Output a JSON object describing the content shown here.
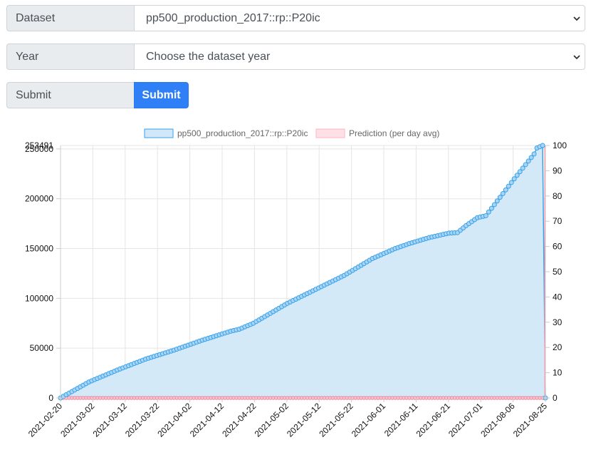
{
  "form": {
    "dataset_label": "Dataset",
    "dataset_value": "pp500_production_2017::rp::P20ic",
    "year_label": "Year",
    "year_value": "Choose the dataset year",
    "submit_label": "Submit",
    "submit_button": "Submit"
  },
  "chart_data": {
    "type": "line",
    "legend_placement": "top",
    "grid": true,
    "x_tick_labels": [
      "2021-02-20",
      "2021-03-02",
      "2021-03-12",
      "2021-03-22",
      "2021-04-02",
      "2021-04-12",
      "2021-04-22",
      "2021-05-02",
      "2021-05-12",
      "2021-05-22",
      "2021-06-01",
      "2021-06-11",
      "2021-06-21",
      "2021-07-01",
      "2021-08-06",
      "2021-08-25"
    ],
    "y_left": {
      "ticks": [
        0,
        50000,
        100000,
        150000,
        200000,
        250000
      ],
      "max_label": "253491",
      "ylim": [
        0,
        253491
      ]
    },
    "y_right": {
      "ticks": [
        0,
        10,
        20,
        30,
        40,
        50,
        60,
        70,
        80,
        90,
        100
      ],
      "ylim": [
        0,
        100
      ]
    },
    "series": [
      {
        "name": "pp500_production_2017::rp::P20ic",
        "color": "#36a2eb",
        "fill": "#d2e8f8",
        "axis": "left",
        "anchor_values": [
          [
            0,
            0
          ],
          [
            10,
            16000
          ],
          [
            20,
            28000
          ],
          [
            30,
            39000
          ],
          [
            40,
            48000
          ],
          [
            50,
            58000
          ],
          [
            60,
            67000
          ],
          [
            63,
            69000
          ],
          [
            68,
            75000
          ],
          [
            80,
            95000
          ],
          [
            90,
            109000
          ],
          [
            100,
            123000
          ],
          [
            110,
            140000
          ],
          [
            118,
            150000
          ],
          [
            123,
            155000
          ],
          [
            130,
            161000
          ],
          [
            137,
            165500
          ],
          [
            140,
            166000
          ],
          [
            143,
            173000
          ],
          [
            147,
            181000
          ],
          [
            150,
            183000
          ],
          [
            160,
            220000
          ],
          [
            167,
            245000
          ],
          [
            168,
            251000
          ],
          [
            170,
            253491
          ],
          [
            171,
            0
          ]
        ]
      },
      {
        "name": "Prediction (per day avg)",
        "color": "#ff6384",
        "fill": "#ffe0e6",
        "axis": "right",
        "values_constant": 0
      }
    ]
  }
}
